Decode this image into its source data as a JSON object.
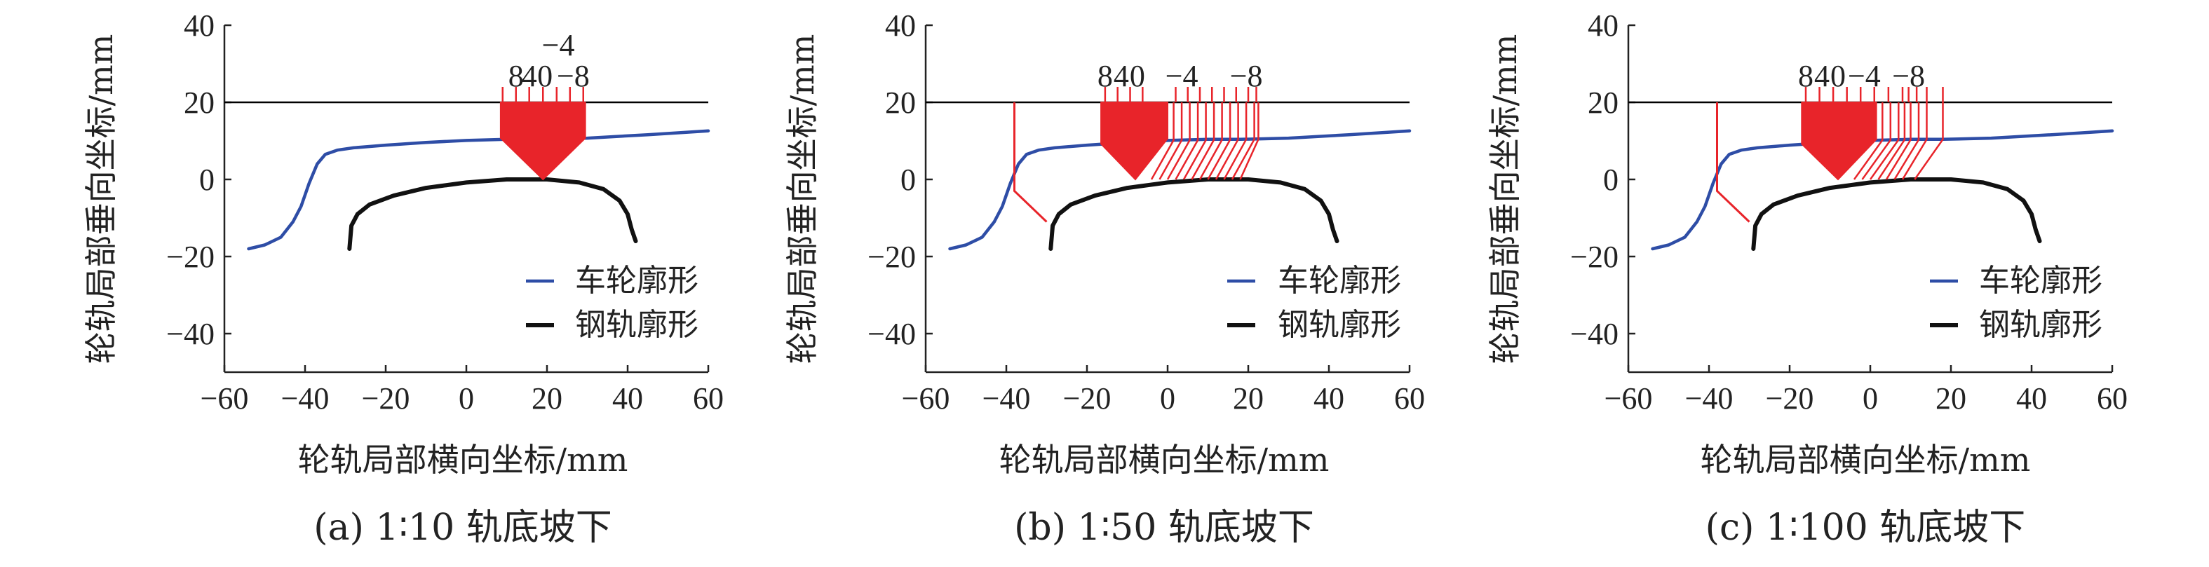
{
  "chart_data": [
    {
      "type": "line",
      "caption": "(a) 1∶10 轨底坡下",
      "xlabel": "轮轨局部横向坐标/mm",
      "ylabel": "轮轨局部垂向坐标/mm",
      "xlim": [
        -60,
        60
      ],
      "ylim": [
        -50,
        40
      ],
      "xticks": [
        "−60",
        "−40",
        "−20",
        "0",
        "20",
        "40",
        "60"
      ],
      "yticks": [
        "40",
        "20",
        "0",
        "−20",
        "−40"
      ],
      "legend": {
        "placement": "bottom-right",
        "entries": [
          "车轮廓形",
          "钢轨廓形"
        ]
      },
      "colors": {
        "wheel": "#2E4DA6",
        "rail": "#111111",
        "contact": "#E8242A",
        "reference": "#000000"
      },
      "reference_line_y": 20,
      "wheel_profile": [
        [
          -54,
          -18
        ],
        [
          -50,
          -17
        ],
        [
          -46,
          -15
        ],
        [
          -43,
          -11
        ],
        [
          -41,
          -7
        ],
        [
          -39,
          -1
        ],
        [
          -37,
          4
        ],
        [
          -35,
          6.5
        ],
        [
          -32,
          7.6
        ],
        [
          -28,
          8.2
        ],
        [
          -20,
          8.9
        ],
        [
          -10,
          9.6
        ],
        [
          0,
          10.1
        ],
        [
          10,
          10.4
        ],
        [
          18,
          10.4
        ],
        [
          30,
          10.7
        ],
        [
          45,
          11.6
        ],
        [
          60,
          12.6
        ]
      ],
      "rail_profile": [
        [
          -29,
          -18
        ],
        [
          -28.5,
          -12
        ],
        [
          -27,
          -9
        ],
        [
          -24,
          -6.5
        ],
        [
          -18,
          -4.2
        ],
        [
          -10,
          -2.2
        ],
        [
          0,
          -0.8
        ],
        [
          10,
          0
        ],
        [
          20,
          0
        ],
        [
          28,
          -0.8
        ],
        [
          34,
          -2.5
        ],
        [
          38,
          -5.5
        ],
        [
          40,
          -9
        ],
        [
          41,
          -13
        ],
        [
          42,
          -16
        ]
      ],
      "contact_patches": [
        {
          "label_positions": [
            9,
            12.3,
            15.6,
            19,
            22.4,
            25.7,
            29
          ],
          "top_labels": [
            "8",
            "4",
            "0",
            "−4",
            "−8"
          ],
          "polygon": [
            [
              8.5,
              20
            ],
            [
              29.5,
              20
            ],
            [
              29.5,
              10.7
            ],
            [
              19,
              0
            ],
            [
              8.5,
              10.7
            ]
          ],
          "hatch_lines": []
        }
      ]
    },
    {
      "type": "line",
      "caption": "(b) 1∶50 轨底坡下",
      "xlabel": "轮轨局部横向坐标/mm",
      "ylabel": "轮轨局部垂向坐标/mm",
      "xlim": [
        -60,
        60
      ],
      "ylim": [
        -50,
        40
      ],
      "xticks": [
        "−60",
        "−40",
        "−20",
        "0",
        "20",
        "40",
        "60"
      ],
      "yticks": [
        "40",
        "20",
        "0",
        "−20",
        "−40"
      ],
      "legend": {
        "placement": "bottom-right",
        "entries": [
          "车轮廓形",
          "钢轨廓形"
        ]
      },
      "colors": {
        "wheel": "#2E4DA6",
        "rail": "#111111",
        "contact": "#E8242A",
        "reference": "#000000"
      },
      "reference_line_y": 20,
      "wheel_profile": [
        [
          -54,
          -18
        ],
        [
          -50,
          -17
        ],
        [
          -46,
          -15
        ],
        [
          -43,
          -11
        ],
        [
          -41,
          -7
        ],
        [
          -39,
          -1
        ],
        [
          -37,
          4
        ],
        [
          -35,
          6.5
        ],
        [
          -32,
          7.6
        ],
        [
          -28,
          8.2
        ],
        [
          -20,
          8.9
        ],
        [
          -10,
          9.6
        ],
        [
          0,
          10.1
        ],
        [
          10,
          10.4
        ],
        [
          18,
          10.4
        ],
        [
          30,
          10.7
        ],
        [
          45,
          11.6
        ],
        [
          60,
          12.6
        ]
      ],
      "rail_profile": [
        [
          -29,
          -18
        ],
        [
          -28.5,
          -12
        ],
        [
          -27,
          -9
        ],
        [
          -24,
          -6.5
        ],
        [
          -18,
          -4.2
        ],
        [
          -10,
          -2.2
        ],
        [
          0,
          -0.8
        ],
        [
          10,
          0
        ],
        [
          20,
          0
        ],
        [
          28,
          -0.8
        ],
        [
          34,
          -2.5
        ],
        [
          38,
          -5.5
        ],
        [
          40,
          -9
        ],
        [
          41,
          -13
        ],
        [
          42,
          -16
        ]
      ],
      "flange_line": [
        [
          -38,
          20
        ],
        [
          -38,
          -3
        ],
        [
          -30,
          -11
        ]
      ],
      "contact_patches": [
        {
          "label_positions": [
            -15.5,
            -12.4,
            -9.3,
            -6.2,
            2,
            5,
            8,
            11,
            14,
            17,
            20,
            22
          ],
          "top_labels": [
            "8",
            "4",
            "0",
            "−4",
            "−8"
          ],
          "polygon": [
            [
              -16.5,
              20
            ],
            [
              0,
              20
            ],
            [
              0,
              10.6
            ],
            [
              -8,
              0
            ],
            [
              -16.5,
              9.2
            ]
          ],
          "hatch_lines": [
            [
              [
                1.5,
                20
              ],
              [
                1.5,
                10.2
              ],
              [
                -4,
                0
              ]
            ],
            [
              [
                3.5,
                20
              ],
              [
                3.5,
                10.2
              ],
              [
                -2,
                0
              ]
            ],
            [
              [
                5.5,
                20
              ],
              [
                5.5,
                10.2
              ],
              [
                0,
                0
              ]
            ],
            [
              [
                7.5,
                20
              ],
              [
                7.5,
                10.2
              ],
              [
                2,
                0
              ]
            ],
            [
              [
                9.5,
                20
              ],
              [
                9.5,
                10.2
              ],
              [
                4,
                0
              ]
            ],
            [
              [
                11.5,
                20
              ],
              [
                11.5,
                10.3
              ],
              [
                6,
                0
              ]
            ],
            [
              [
                13.5,
                20
              ],
              [
                13.5,
                10.3
              ],
              [
                8,
                0
              ]
            ],
            [
              [
                15.5,
                20
              ],
              [
                15.5,
                10.3
              ],
              [
                10,
                0
              ]
            ],
            [
              [
                17.5,
                20
              ],
              [
                17.5,
                10.4
              ],
              [
                12,
                0
              ]
            ],
            [
              [
                19.5,
                20
              ],
              [
                19.5,
                10.4
              ],
              [
                14,
                0
              ]
            ],
            [
              [
                21.5,
                20
              ],
              [
                21.5,
                10.4
              ],
              [
                16,
                0
              ]
            ],
            [
              [
                22.5,
                20
              ],
              [
                22.5,
                10.4
              ],
              [
                18,
                0
              ]
            ]
          ]
        }
      ]
    },
    {
      "type": "line",
      "caption": "(c) 1∶100 轨底坡下",
      "xlabel": "轮轨局部横向坐标/mm",
      "ylabel": "轮轨局部垂向坐标/mm",
      "xlim": [
        -60,
        60
      ],
      "ylim": [
        -50,
        40
      ],
      "xticks": [
        "−60",
        "−40",
        "−20",
        "0",
        "20",
        "40",
        "60"
      ],
      "yticks": [
        "40",
        "20",
        "0",
        "−20",
        "−40"
      ],
      "legend": {
        "placement": "bottom-right",
        "entries": [
          "车轮廓形",
          "钢轨廓形"
        ]
      },
      "colors": {
        "wheel": "#2E4DA6",
        "rail": "#111111",
        "contact": "#E8242A",
        "reference": "#000000"
      },
      "reference_line_y": 20,
      "wheel_profile": [
        [
          -54,
          -18
        ],
        [
          -50,
          -17
        ],
        [
          -46,
          -15
        ],
        [
          -43,
          -11
        ],
        [
          -41,
          -7
        ],
        [
          -39,
          -1
        ],
        [
          -37,
          4
        ],
        [
          -35,
          6.5
        ],
        [
          -32,
          7.6
        ],
        [
          -28,
          8.2
        ],
        [
          -20,
          8.9
        ],
        [
          -10,
          9.6
        ],
        [
          0,
          10.1
        ],
        [
          10,
          10.4
        ],
        [
          18,
          10.4
        ],
        [
          30,
          10.7
        ],
        [
          45,
          11.6
        ],
        [
          60,
          12.6
        ]
      ],
      "rail_profile": [
        [
          -29,
          -18
        ],
        [
          -28.5,
          -12
        ],
        [
          -27,
          -9
        ],
        [
          -24,
          -6.5
        ],
        [
          -18,
          -4.2
        ],
        [
          -10,
          -2.2
        ],
        [
          0,
          -0.8
        ],
        [
          10,
          0
        ],
        [
          20,
          0
        ],
        [
          28,
          -0.8
        ],
        [
          34,
          -2.5
        ],
        [
          38,
          -5.5
        ],
        [
          40,
          -9
        ],
        [
          41,
          -13
        ],
        [
          42,
          -16
        ]
      ],
      "flange_line": [
        [
          -38,
          20
        ],
        [
          -38,
          -3
        ],
        [
          -30,
          -11
        ]
      ],
      "contact_patches": [
        {
          "label_positions": [
            -16,
            -12.6,
            -9.2,
            -5.8,
            -2.4,
            1,
            4.5,
            8,
            9.5,
            11.5,
            14,
            18
          ],
          "top_labels": [
            "8",
            "4",
            "0",
            "−4",
            "−8"
          ],
          "polygon": [
            [
              -17,
              20
            ],
            [
              1.5,
              20
            ],
            [
              1.5,
              10.4
            ],
            [
              -8,
              0
            ],
            [
              -17,
              9.2
            ]
          ],
          "hatch_lines": [
            [
              [
                3,
                20
              ],
              [
                3,
                10.2
              ],
              [
                -4,
                0
              ]
            ],
            [
              [
                5,
                20
              ],
              [
                5,
                10.2
              ],
              [
                -2,
                0
              ]
            ],
            [
              [
                7,
                20
              ],
              [
                7,
                10.3
              ],
              [
                0,
                0
              ]
            ],
            [
              [
                8.5,
                20
              ],
              [
                8.5,
                10.3
              ],
              [
                2,
                0
              ]
            ],
            [
              [
                10,
                20
              ],
              [
                10,
                10.3
              ],
              [
                4,
                0
              ]
            ],
            [
              [
                12,
                20
              ],
              [
                12,
                10.3
              ],
              [
                6,
                0
              ]
            ],
            [
              [
                14,
                20
              ],
              [
                14,
                10.4
              ],
              [
                8,
                0
              ]
            ],
            [
              [
                18,
                20
              ],
              [
                18,
                10.4
              ],
              [
                11,
                0
              ]
            ]
          ]
        }
      ]
    }
  ]
}
